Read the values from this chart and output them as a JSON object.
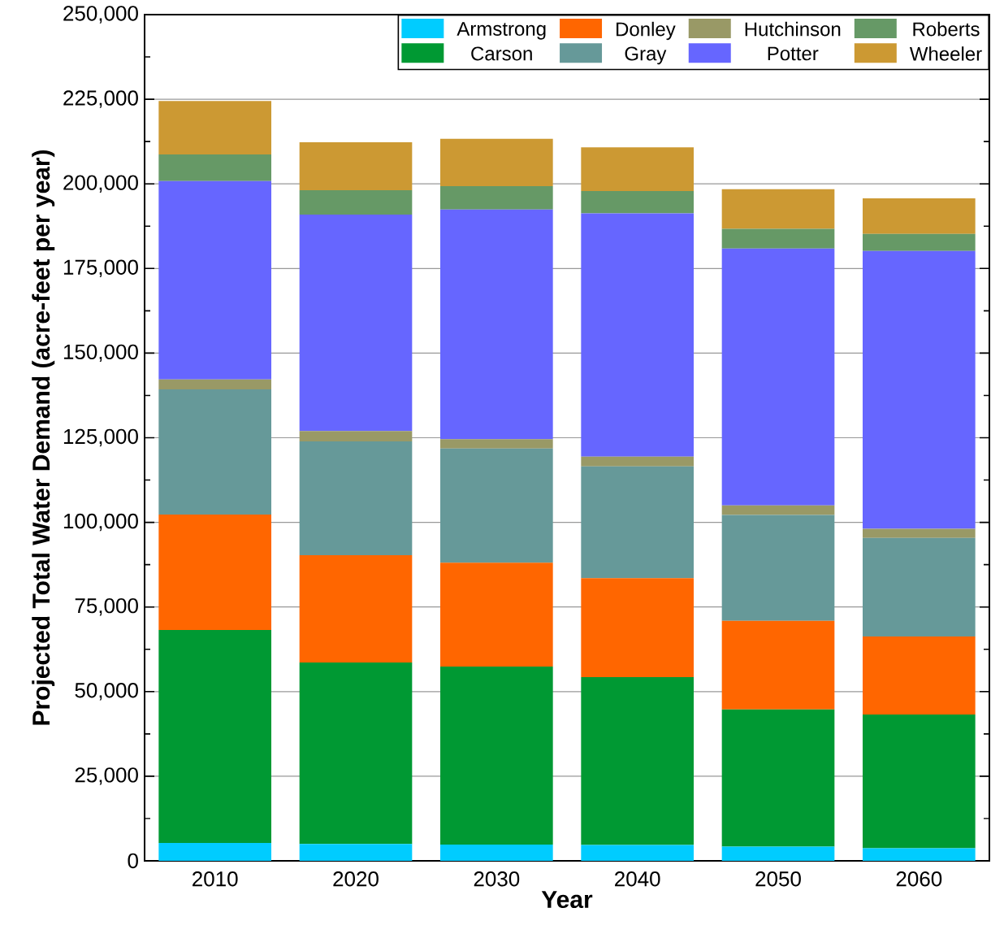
{
  "chart_data": {
    "type": "bar",
    "stacked": true,
    "xlabel": "Year",
    "ylabel": "Projected Total Water Demand (acre-feet per year)",
    "categories": [
      "2010",
      "2020",
      "2030",
      "2040",
      "2050",
      "2060"
    ],
    "series": [
      {
        "name": "Armstrong",
        "color": "#00ccff",
        "values": [
          5300,
          5000,
          4800,
          4700,
          4200,
          3700
        ]
      },
      {
        "name": "Carson",
        "color": "#009933",
        "values": [
          62900,
          53600,
          52600,
          49600,
          40500,
          39500
        ]
      },
      {
        "name": "Donley",
        "color": "#ff6600",
        "values": [
          34100,
          31700,
          30700,
          29200,
          26200,
          23100
        ]
      },
      {
        "name": "Gray",
        "color": "#669999",
        "values": [
          37000,
          33600,
          33700,
          33000,
          31300,
          29100
        ]
      },
      {
        "name": "Hutchinson",
        "color": "#999966",
        "values": [
          2900,
          3100,
          2800,
          2900,
          2800,
          2700
        ]
      },
      {
        "name": "Potter",
        "color": "#6666ff",
        "values": [
          58600,
          63900,
          67800,
          71900,
          75900,
          82100
        ]
      },
      {
        "name": "Roberts",
        "color": "#669966",
        "values": [
          7900,
          7200,
          6900,
          6600,
          5800,
          5000
        ]
      },
      {
        "name": "Wheeler",
        "color": "#cc9933",
        "values": [
          15800,
          14200,
          14000,
          12900,
          11700,
          10500
        ]
      }
    ],
    "ylim": [
      0,
      250000
    ],
    "yticks": [
      {
        "value": 0,
        "label": "0"
      },
      {
        "value": 25000,
        "label": "25,000"
      },
      {
        "value": 50000,
        "label": "50,000"
      },
      {
        "value": 75000,
        "label": "75,000"
      },
      {
        "value": 100000,
        "label": "100,000"
      },
      {
        "value": 125000,
        "label": "125,000"
      },
      {
        "value": 150000,
        "label": "150,000"
      },
      {
        "value": 175000,
        "label": "175,000"
      },
      {
        "value": 200000,
        "label": "200,000"
      },
      {
        "value": 225000,
        "label": "225,000"
      },
      {
        "value": 250000,
        "label": "250,000"
      }
    ],
    "grid": "y",
    "legend": "top right"
  }
}
